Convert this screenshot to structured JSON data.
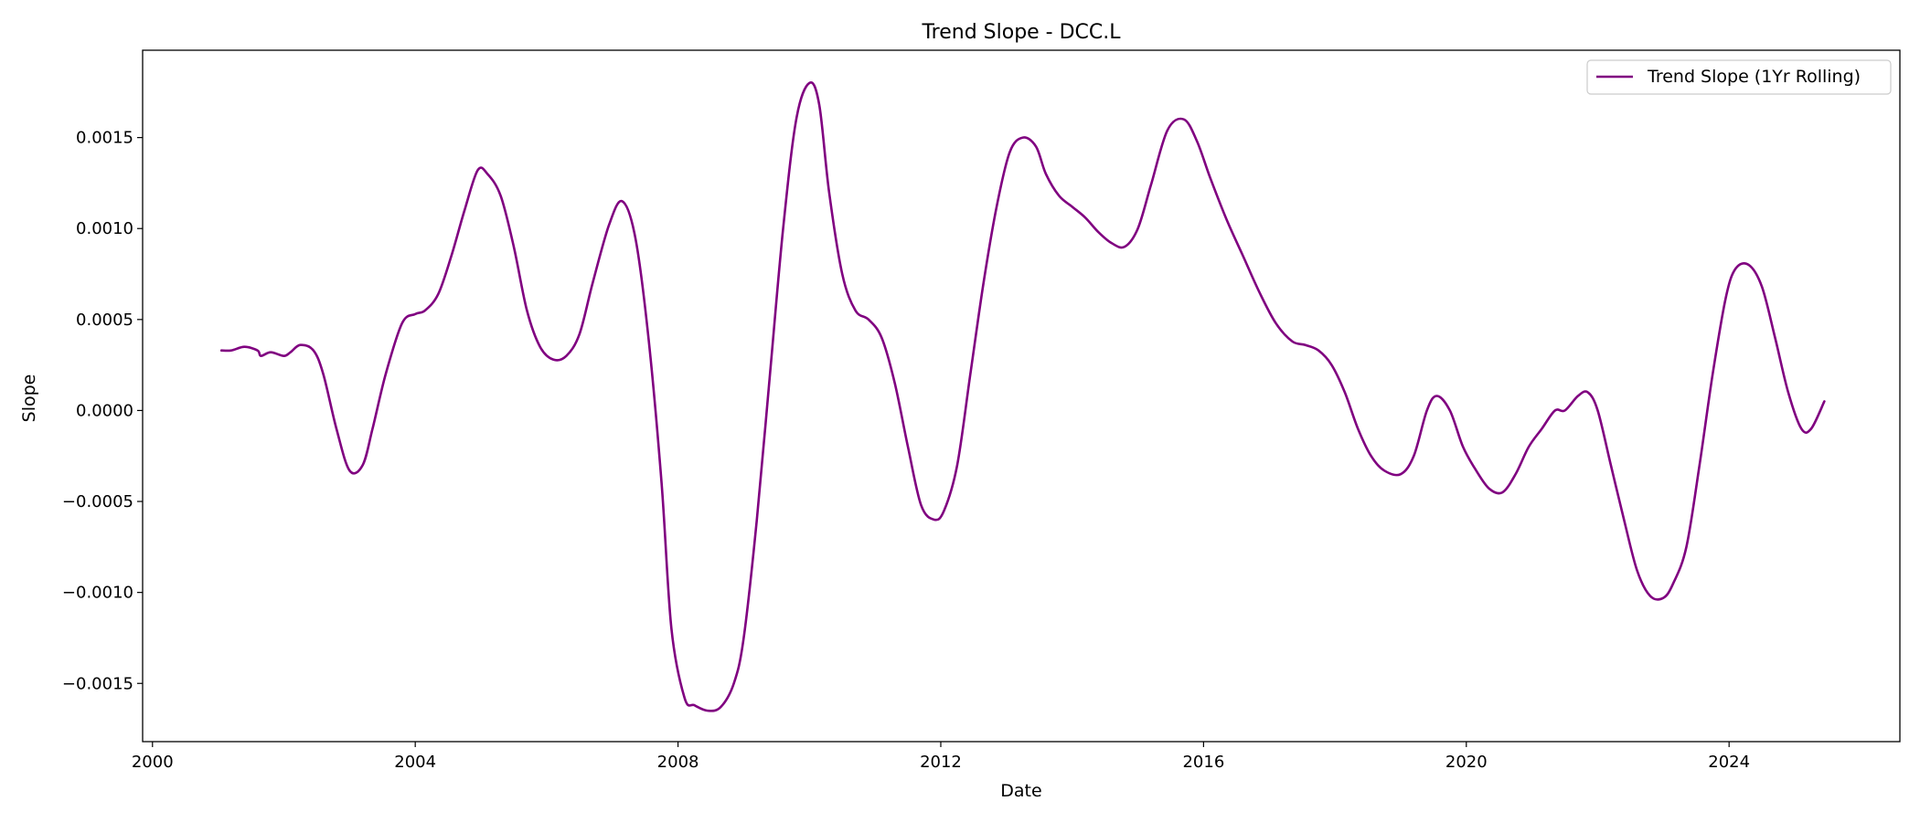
{
  "chart_data": {
    "type": "line",
    "title": "Trend Slope - DCC.L",
    "xlabel": "Date",
    "ylabel": "Slope",
    "xlim": [
      1999.85,
      2026.6
    ],
    "ylim": [
      -0.00182,
      0.00198
    ],
    "x_ticks": [
      2000,
      2004,
      2008,
      2012,
      2016,
      2020,
      2024
    ],
    "x_tick_labels": [
      "2000",
      "2004",
      "2008",
      "2012",
      "2016",
      "2020",
      "2024"
    ],
    "y_ticks": [
      -0.0015,
      -0.001,
      -0.0005,
      0.0,
      0.0005,
      0.001,
      0.0015
    ],
    "y_tick_labels": [
      "−0.0015",
      "−0.0010",
      "−0.0005",
      "0.0000",
      "0.0005",
      "0.0010",
      "0.0015"
    ],
    "grid": false,
    "legend_position": "top-right",
    "series": [
      {
        "name": "Trend Slope (1Yr Rolling)",
        "color": "#800080",
        "x": [
          2001.05,
          2001.2,
          2001.4,
          2001.6,
          2001.65,
          2001.8,
          2002.0,
          2002.1,
          2002.25,
          2002.45,
          2002.6,
          2002.8,
          2003.0,
          2003.2,
          2003.35,
          2003.55,
          2003.8,
          2004.0,
          2004.15,
          2004.35,
          2004.55,
          2004.75,
          2004.95,
          2005.1,
          2005.3,
          2005.5,
          2005.7,
          2005.9,
          2006.1,
          2006.3,
          2006.5,
          2006.7,
          2006.95,
          2007.15,
          2007.35,
          2007.55,
          2007.75,
          2007.9,
          2008.1,
          2008.25,
          2008.45,
          2008.65,
          2008.85,
          2009.0,
          2009.2,
          2009.4,
          2009.6,
          2009.8,
          2010.0,
          2010.15,
          2010.3,
          2010.5,
          2010.7,
          2010.9,
          2011.1,
          2011.3,
          2011.5,
          2011.7,
          2011.9,
          2012.05,
          2012.25,
          2012.45,
          2012.65,
          2012.85,
          2013.05,
          2013.25,
          2013.45,
          2013.6,
          2013.8,
          2014.0,
          2014.2,
          2014.4,
          2014.6,
          2014.8,
          2015.0,
          2015.2,
          2015.45,
          2015.7,
          2015.9,
          2016.1,
          2016.35,
          2016.6,
          2016.85,
          2017.1,
          2017.35,
          2017.55,
          2017.75,
          2017.95,
          2018.15,
          2018.35,
          2018.55,
          2018.75,
          2019.0,
          2019.2,
          2019.4,
          2019.55,
          2019.75,
          2019.95,
          2020.15,
          2020.35,
          2020.55,
          2020.75,
          2020.95,
          2021.15,
          2021.35,
          2021.5,
          2021.7,
          2021.85,
          2022.0,
          2022.2,
          2022.4,
          2022.6,
          2022.8,
          2023.0,
          2023.15,
          2023.35,
          2023.55,
          2023.75,
          2023.95,
          2024.1,
          2024.3,
          2024.5,
          2024.7,
          2024.9,
          2025.1,
          2025.25,
          2025.45
        ],
        "values": [
          0.00033,
          0.00033,
          0.00035,
          0.00033,
          0.0003,
          0.00032,
          0.0003,
          0.00032,
          0.00036,
          0.00033,
          0.0002,
          -0.0001,
          -0.00033,
          -0.0003,
          -0.0001,
          0.0002,
          0.00048,
          0.00053,
          0.00055,
          0.00064,
          0.00085,
          0.0011,
          0.00132,
          0.0013,
          0.00118,
          0.0009,
          0.00055,
          0.00035,
          0.00028,
          0.0003,
          0.00042,
          0.0007,
          0.00102,
          0.00115,
          0.00095,
          0.0004,
          -0.0004,
          -0.0012,
          -0.00158,
          -0.00162,
          -0.00165,
          -0.00163,
          -0.0015,
          -0.00125,
          -0.0006,
          0.0002,
          0.001,
          0.0016,
          0.0018,
          0.00168,
          0.0012,
          0.00075,
          0.00055,
          0.0005,
          0.0004,
          0.00015,
          -0.0002,
          -0.00052,
          -0.0006,
          -0.00055,
          -0.0003,
          0.0002,
          0.0007,
          0.00112,
          0.00142,
          0.0015,
          0.00145,
          0.0013,
          0.00118,
          0.00112,
          0.00106,
          0.00098,
          0.00092,
          0.0009,
          0.001,
          0.00124,
          0.00154,
          0.0016,
          0.00148,
          0.00128,
          0.00105,
          0.00085,
          0.00065,
          0.00048,
          0.00038,
          0.00036,
          0.00033,
          0.00025,
          0.0001,
          -0.0001,
          -0.00025,
          -0.00033,
          -0.00035,
          -0.00025,
          0.0,
          8e-05,
          0.0,
          -0.0002,
          -0.00033,
          -0.00043,
          -0.00045,
          -0.00035,
          -0.0002,
          -0.0001,
          0.0,
          0.0,
          8e-05,
          0.0001,
          0.0,
          -0.0003,
          -0.0006,
          -0.00088,
          -0.00102,
          -0.00103,
          -0.00095,
          -0.00075,
          -0.0003,
          0.0002,
          0.00062,
          0.00078,
          0.0008,
          0.00068,
          0.0004,
          0.0001,
          -0.0001,
          -0.0001,
          5e-05
        ]
      }
    ]
  }
}
